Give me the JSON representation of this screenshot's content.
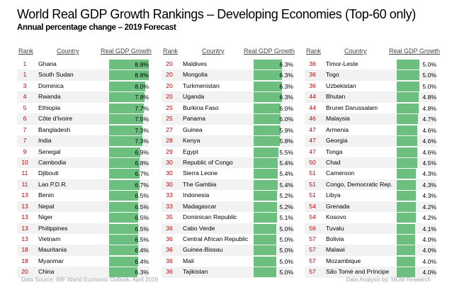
{
  "chart_data": {
    "type": "table",
    "title": "World Real GDP Growth Rankings – Developing Economies (Top-60 only)",
    "subtitle": "Annual percentage change – 2019 Forecast",
    "columns": [
      "Rank",
      "Country",
      "Real GDP Growth"
    ],
    "rows": [
      {
        "rank": "1",
        "country": "Ghana",
        "value": 8.8,
        "label": "8.8%"
      },
      {
        "rank": "1",
        "country": "South Sudan",
        "value": 8.8,
        "label": "8.8%"
      },
      {
        "rank": "3",
        "country": "Dominica",
        "value": 8.0,
        "label": "8.0%"
      },
      {
        "rank": "4",
        "country": "Rwanda",
        "value": 7.8,
        "label": "7.8%"
      },
      {
        "rank": "5",
        "country": "Ethiopia",
        "value": 7.7,
        "label": "7.7%"
      },
      {
        "rank": "6",
        "country": "Côte d'Ivoire",
        "value": 7.5,
        "label": "7.5%"
      },
      {
        "rank": "7",
        "country": "Bangladesh",
        "value": 7.3,
        "label": "7.3%"
      },
      {
        "rank": "7",
        "country": "India",
        "value": 7.3,
        "label": "7.3%"
      },
      {
        "rank": "9",
        "country": "Senegal",
        "value": 6.9,
        "label": "6.9%"
      },
      {
        "rank": "10",
        "country": "Cambodia",
        "value": 6.8,
        "label": "6.8%"
      },
      {
        "rank": "11",
        "country": "Djibouti",
        "value": 6.7,
        "label": "6.7%"
      },
      {
        "rank": "11",
        "country": "Lao P.D.R.",
        "value": 6.7,
        "label": "6.7%"
      },
      {
        "rank": "13",
        "country": "Benin",
        "value": 6.5,
        "label": "6.5%"
      },
      {
        "rank": "13",
        "country": "Nepal",
        "value": 6.5,
        "label": "6.5%"
      },
      {
        "rank": "13",
        "country": "Niger",
        "value": 6.5,
        "label": "6.5%"
      },
      {
        "rank": "13",
        "country": "Philippines",
        "value": 6.5,
        "label": "6.5%"
      },
      {
        "rank": "13",
        "country": "Vietnam",
        "value": 6.5,
        "label": "6.5%"
      },
      {
        "rank": "18",
        "country": "Mauritania",
        "value": 6.4,
        "label": "6.4%"
      },
      {
        "rank": "18",
        "country": "Myanmar",
        "value": 6.4,
        "label": "6.4%"
      },
      {
        "rank": "20",
        "country": "China",
        "value": 6.3,
        "label": "6.3%"
      },
      {
        "rank": "20",
        "country": "Maldives",
        "value": 6.3,
        "label": "6.3%"
      },
      {
        "rank": "20",
        "country": "Mongolia",
        "value": 6.3,
        "label": "6.3%"
      },
      {
        "rank": "20",
        "country": "Turkmenistan",
        "value": 6.3,
        "label": "6.3%"
      },
      {
        "rank": "20",
        "country": "Uganda",
        "value": 6.3,
        "label": "6.3%"
      },
      {
        "rank": "25",
        "country": "Burkina Faso",
        "value": 6.0,
        "label": "6.0%"
      },
      {
        "rank": "25",
        "country": "Panama",
        "value": 6.0,
        "label": "6.0%"
      },
      {
        "rank": "27",
        "country": "Guinea",
        "value": 5.9,
        "label": "5.9%"
      },
      {
        "rank": "28",
        "country": "Kenya",
        "value": 5.8,
        "label": "5.8%"
      },
      {
        "rank": "29",
        "country": "Egypt",
        "value": 5.5,
        "label": "5.5%"
      },
      {
        "rank": "30",
        "country": "Republic of Congo",
        "value": 5.4,
        "label": "5.4%"
      },
      {
        "rank": "30",
        "country": "Sierra Leone",
        "value": 5.4,
        "label": "5.4%"
      },
      {
        "rank": "30",
        "country": "The Gambia",
        "value": 5.4,
        "label": "5.4%"
      },
      {
        "rank": "33",
        "country": "Indonesia",
        "value": 5.2,
        "label": "5.2%"
      },
      {
        "rank": "33",
        "country": "Madagascar",
        "value": 5.2,
        "label": "5.2%"
      },
      {
        "rank": "35",
        "country": "Dominican Republic",
        "value": 5.1,
        "label": "5.1%"
      },
      {
        "rank": "36",
        "country": "Cabo Verde",
        "value": 5.0,
        "label": "5.0%"
      },
      {
        "rank": "36",
        "country": "Central African Republic",
        "value": 5.0,
        "label": "5.0%"
      },
      {
        "rank": "36",
        "country": "Guinea-Bissau",
        "value": 5.0,
        "label": "5.0%"
      },
      {
        "rank": "36",
        "country": "Mali",
        "value": 5.0,
        "label": "5.0%"
      },
      {
        "rank": "36",
        "country": "Tajikistan",
        "value": 5.0,
        "label": "5.0%"
      },
      {
        "rank": "36",
        "country": "Timor-Leste",
        "value": 5.0,
        "label": "5.0%"
      },
      {
        "rank": "36",
        "country": "Togo",
        "value": 5.0,
        "label": "5.0%"
      },
      {
        "rank": "36",
        "country": "Uzbekistan",
        "value": 5.0,
        "label": "5.0%"
      },
      {
        "rank": "44",
        "country": "Bhutan",
        "value": 4.8,
        "label": "4.8%"
      },
      {
        "rank": "44",
        "country": "Brunei Darussalam",
        "value": 4.8,
        "label": "4.8%"
      },
      {
        "rank": "46",
        "country": "Malaysia",
        "value": 4.7,
        "label": "4.7%"
      },
      {
        "rank": "47",
        "country": "Armenia",
        "value": 4.6,
        "label": "4.6%"
      },
      {
        "rank": "47",
        "country": "Georgia",
        "value": 4.6,
        "label": "4.6%"
      },
      {
        "rank": "47",
        "country": "Tonga",
        "value": 4.6,
        "label": "4.6%"
      },
      {
        "rank": "50",
        "country": "Chad",
        "value": 4.5,
        "label": "4.5%"
      },
      {
        "rank": "51",
        "country": "Cameroon",
        "value": 4.3,
        "label": "4.3%"
      },
      {
        "rank": "51",
        "country": "Congo, Democratic Rep.",
        "value": 4.3,
        "label": "4.3%"
      },
      {
        "rank": "51",
        "country": "Libya",
        "value": 4.3,
        "label": "4.3%"
      },
      {
        "rank": "54",
        "country": "Grenada",
        "value": 4.2,
        "label": "4.2%"
      },
      {
        "rank": "54",
        "country": "Kosovo",
        "value": 4.2,
        "label": "4.2%"
      },
      {
        "rank": "56",
        "country": "Tuvalu",
        "value": 4.1,
        "label": "4.1%"
      },
      {
        "rank": "57",
        "country": "Bolivia",
        "value": 4.0,
        "label": "4.0%"
      },
      {
        "rank": "57",
        "country": "Malawi",
        "value": 4.0,
        "label": "4.0%"
      },
      {
        "rank": "57",
        "country": "Mozambique",
        "value": 4.0,
        "label": "4.0%"
      },
      {
        "rank": "57",
        "country": "São Tomé and Príncipe",
        "value": 4.0,
        "label": "4.0%"
      }
    ],
    "value_max": 8.8,
    "bar_color": "#6dbf7f",
    "rank_color": "#c00000",
    "grid": false
  },
  "footer": {
    "source": "Data Source: IMF World Economic Outlook, April 2019",
    "analysis": "Data Analysis by: MGM Research"
  }
}
